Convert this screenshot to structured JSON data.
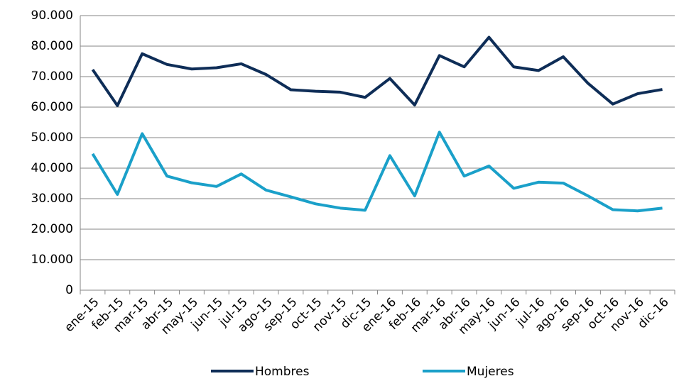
{
  "chart_data": {
    "type": "line",
    "categories": [
      "ene-15",
      "feb-15",
      "mar-15",
      "abr-15",
      "may-15",
      "jun-15",
      "jul-15",
      "ago-15",
      "sep-15",
      "oct-15",
      "nov-15",
      "dic-15",
      "ene-16",
      "feb-16",
      "mar-16",
      "abr-16",
      "may-16",
      "jun-16",
      "jul-16",
      "ago-16",
      "sep-16",
      "oct-16",
      "nov-16",
      "dic-16"
    ],
    "series": [
      {
        "name": "Hombres",
        "color": "#0e2d57",
        "values": [
          72300,
          60500,
          77500,
          74000,
          72500,
          72900,
          74200,
          70700,
          65700,
          65200,
          64900,
          63200,
          69400,
          60700,
          76900,
          73200,
          82900,
          73200,
          72000,
          76500,
          67800,
          61000,
          64400,
          65800
        ]
      },
      {
        "name": "Mujeres",
        "color": "#1aa0c9",
        "values": [
          44700,
          31400,
          51300,
          37400,
          35200,
          34000,
          38100,
          32800,
          30600,
          28300,
          26900,
          26200,
          44100,
          30900,
          51800,
          37400,
          40700,
          33400,
          35400,
          35100,
          30900,
          26400,
          26000,
          26900
        ]
      }
    ],
    "ylim": [
      0,
      90000
    ],
    "yticks": [
      0,
      {
        "value": 10000,
        "label": "10.000"
      },
      {
        "value": 20000,
        "label": "20.000"
      },
      {
        "value": 30000,
        "label": "30.000"
      },
      {
        "value": 40000,
        "label": "40.000"
      },
      {
        "value": 50000,
        "label": "50.000"
      },
      {
        "value": 60000,
        "label": "60.000"
      },
      {
        "value": 70000,
        "label": "70.000"
      },
      {
        "value": 80000,
        "label": "80.000"
      },
      {
        "value": 90000,
        "label": "90.000"
      }
    ],
    "grid": true,
    "legend": "bottom"
  }
}
